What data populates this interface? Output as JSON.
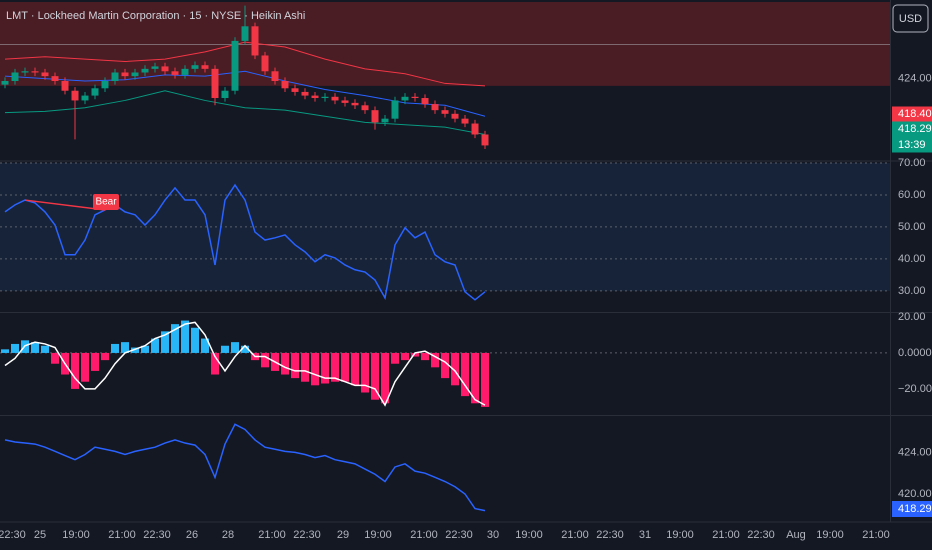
{
  "header": {
    "currency": "USD"
  },
  "x_axis": {
    "xlim": [
      -0.5,
      88.5
    ],
    "xticks": [
      {
        "value": 0.7,
        "label": "22:30"
      },
      {
        "value": 3.5,
        "label": "25"
      },
      {
        "value": 7.1,
        "label": "19:00"
      },
      {
        "value": 11.7,
        "label": "21:00"
      },
      {
        "value": 15.2,
        "label": "22:30"
      },
      {
        "value": 18.7,
        "label": "26"
      },
      {
        "value": 22.3,
        "label": "28"
      },
      {
        "value": 26.7,
        "label": "21:00"
      },
      {
        "value": 30.2,
        "label": "22:30"
      },
      {
        "value": 33.8,
        "label": "29"
      },
      {
        "value": 37.3,
        "label": "19:00"
      },
      {
        "value": 41.9,
        "label": "21:00"
      },
      {
        "value": 45.4,
        "label": "22:30"
      },
      {
        "value": 48.8,
        "label": "30"
      },
      {
        "value": 52.4,
        "label": "19:00"
      },
      {
        "value": 57,
        "label": "21:00"
      },
      {
        "value": 60.5,
        "label": "22:30"
      },
      {
        "value": 64,
        "label": "31"
      },
      {
        "value": 67.5,
        "label": "19:00"
      },
      {
        "value": 72.1,
        "label": "21:00"
      },
      {
        "value": 75.6,
        "label": "22:30"
      },
      {
        "value": 79.1,
        "label": "Aug"
      },
      {
        "value": 82.5,
        "label": "19:00"
      },
      {
        "value": 87.1,
        "label": "21:00"
      }
    ]
  },
  "chart_data": [
    {
      "type": "candlestick",
      "title": "LMT · Lockheed Martin Corporation · 15 · NYSE · Heikin Ashi",
      "up_color": "#089981",
      "down_color": "#f23645",
      "open": [
        423.5,
        423.8,
        424.5,
        424.6,
        424.5,
        424.2,
        423.8,
        423.0,
        422.2,
        422.6,
        423.2,
        423.8,
        424.5,
        424.2,
        424.5,
        424.8,
        425.0,
        424.6,
        424.3,
        424.8,
        425.1,
        424.8,
        422.4,
        423.0,
        427.1,
        428.3,
        425.9,
        424.6,
        423.8,
        423.2,
        422.9,
        422.6,
        422.4,
        422.5,
        422.2,
        422.0,
        421.8,
        421.4,
        420.4,
        420.7,
        422.2,
        422.5,
        422.4,
        421.9,
        421.4,
        421.1,
        420.7,
        420.3,
        419.4
      ],
      "high": [
        424.1,
        424.8,
        424.9,
        424.9,
        424.8,
        424.5,
        424.1,
        423.3,
        422.9,
        423.5,
        424.1,
        424.8,
        424.8,
        424.8,
        425.1,
        425.3,
        425.3,
        424.9,
        425.1,
        425.4,
        425.4,
        425.1,
        423.3,
        427.4,
        430.0,
        428.6,
        426.2,
        424.9,
        424.1,
        423.5,
        423.2,
        422.9,
        422.8,
        422.8,
        422.5,
        422.3,
        422.1,
        421.7,
        421.0,
        422.5,
        422.8,
        422.8,
        422.7,
        422.2,
        421.7,
        421.4,
        421.0,
        420.6,
        419.7
      ],
      "low": [
        423.2,
        423.5,
        424.2,
        424.2,
        423.9,
        423.5,
        422.7,
        419.0,
        421.9,
        422.3,
        422.9,
        423.5,
        423.9,
        423.9,
        424.2,
        424.5,
        424.3,
        424.0,
        424.0,
        424.5,
        424.5,
        421.8,
        422.1,
        422.7,
        426.8,
        425.6,
        424.3,
        423.5,
        422.9,
        422.6,
        422.3,
        422.1,
        422.1,
        421.9,
        421.7,
        421.5,
        421.1,
        419.8,
        420.1,
        420.4,
        421.9,
        422.1,
        421.6,
        421.1,
        420.8,
        420.4,
        420.0,
        419.1,
        418.2
      ],
      "close": [
        423.8,
        424.5,
        424.6,
        424.5,
        424.2,
        423.8,
        423.0,
        422.2,
        422.6,
        423.2,
        423.8,
        424.5,
        424.2,
        424.5,
        424.8,
        425.0,
        424.6,
        424.3,
        424.8,
        425.1,
        424.8,
        422.4,
        423.0,
        427.1,
        428.3,
        425.9,
        424.6,
        423.8,
        423.2,
        422.9,
        422.6,
        422.4,
        422.5,
        422.2,
        422.0,
        421.8,
        421.4,
        420.4,
        420.7,
        422.2,
        422.5,
        422.4,
        421.9,
        421.4,
        421.1,
        420.7,
        420.3,
        419.4,
        418.5
      ],
      "bands": [
        {
          "color": "#f23645",
          "x": [
            0,
            4,
            8,
            12,
            16,
            20,
            24,
            28,
            32,
            36,
            40,
            44,
            48
          ],
          "values": [
            425.6,
            425.8,
            425.6,
            425.4,
            425.6,
            426.2,
            427.0,
            426.6,
            425.6,
            424.8,
            424.4,
            423.6,
            423.4
          ]
        },
        {
          "color": "#2962ff",
          "x": [
            0,
            4,
            8,
            12,
            16,
            20,
            24,
            28,
            32,
            36,
            40,
            44,
            48
          ],
          "values": [
            424.2,
            424.0,
            423.8,
            423.9,
            424.3,
            424.2,
            424.6,
            423.8,
            423.1,
            422.6,
            422.0,
            421.8,
            420.9
          ]
        },
        {
          "color": "#089981",
          "x": [
            0,
            4,
            8,
            12,
            16,
            20,
            24,
            28,
            32,
            36,
            40,
            44,
            48
          ],
          "values": [
            421.2,
            421.3,
            421.6,
            422.2,
            423.0,
            422.2,
            421.6,
            421.4,
            420.9,
            420.4,
            420.2,
            420.0,
            419.4
          ]
        }
      ],
      "zone_bottom": 423.4,
      "zone_color": "#4a1c24",
      "level": 426.8,
      "ylim": [
        417.3,
        430.3
      ],
      "yticks": [
        {
          "value": 424,
          "label": "424.00"
        }
      ],
      "price_labels": [
        {
          "text": "418.40",
          "color": "#f23645"
        },
        {
          "text": "418.29",
          "color": "#089981"
        },
        {
          "text": "13:39",
          "color": "#089981"
        }
      ]
    },
    {
      "type": "line",
      "color": "#2962ff",
      "zone": [
        30,
        70
      ],
      "zone_color": "#172338",
      "grid": true,
      "values": [
        54.7,
        56.9,
        58.4,
        57.5,
        54.7,
        50.6,
        41.3,
        41.3,
        45.9,
        53.8,
        55.3,
        56.9,
        54.7,
        53.8,
        50.6,
        53.8,
        58.4,
        62.2,
        58.4,
        58.4,
        53.8,
        38.1,
        58.4,
        63.1,
        58.4,
        48.4,
        45.9,
        46.6,
        47.5,
        44.4,
        42.2,
        39.1,
        41.3,
        40.3,
        38.1,
        36.6,
        35.9,
        33.4,
        27.8,
        44.4,
        49.7,
        46.6,
        48.4,
        41.3,
        39.1,
        38.1,
        29.7,
        27.2,
        29.7
      ],
      "divergence": {
        "label": "Bear",
        "color": "#f23645",
        "x": [
          2,
          10
        ],
        "values": [
          58.4,
          55.3
        ]
      },
      "ylim": [
        23.4,
        70.3
      ],
      "yticks": [
        {
          "value": 30,
          "label": "30.00"
        },
        {
          "value": 40,
          "label": "40.00"
        },
        {
          "value": 50,
          "label": "50.00"
        },
        {
          "value": 60,
          "label": "60.00"
        },
        {
          "value": 70,
          "label": "70.00"
        }
      ]
    },
    {
      "type": "histogram",
      "pos_color": "#29b6f6",
      "neg_color": "#ff1a6c",
      "line_color": "#ffffff",
      "values": [
        2,
        5,
        7,
        6,
        4,
        -6,
        -12,
        -20,
        -16,
        -10,
        -4,
        5,
        6,
        3,
        4,
        8,
        12,
        16,
        18,
        14,
        8,
        -12,
        4,
        6,
        4,
        -4,
        -8,
        -10,
        -12,
        -14,
        -16,
        -18,
        -17,
        -16,
        -16,
        -18,
        -22,
        -26,
        -28,
        -6,
        -4,
        -2,
        -4,
        -8,
        -14,
        -18,
        -24,
        -28,
        -30
      ],
      "line": [
        -7,
        -3,
        4,
        6,
        5,
        3,
        -6,
        -14,
        -20,
        -20,
        -14,
        -6,
        0,
        2,
        4,
        8,
        10,
        13,
        16,
        17,
        10,
        -2,
        -10,
        -2,
        4,
        -2,
        -2,
        -5,
        -8,
        -10,
        -10,
        -12,
        -14,
        -14,
        -16,
        -18,
        -18,
        -20,
        -29,
        -16,
        -8,
        0,
        1,
        -2,
        -5,
        -10,
        -18,
        -26,
        -29
      ],
      "ylim": [
        -34.5,
        22.2
      ],
      "yticks": [
        {
          "value": -20,
          "label": "−20.00"
        },
        {
          "value": 0,
          "label": "0.0000"
        },
        {
          "value": 20,
          "label": "20.00"
        }
      ],
      "zero_line": true
    },
    {
      "type": "line",
      "color": "#2962ff",
      "values": [
        425.2,
        425.0,
        424.9,
        424.8,
        424.5,
        424.1,
        423.7,
        423.3,
        423.8,
        424.5,
        424.3,
        424.1,
        423.8,
        424.1,
        424.3,
        424.5,
        424.9,
        425.2,
        424.9,
        424.7,
        423.8,
        421.6,
        424.8,
        426.7,
        426.2,
        425.2,
        424.5,
        424.3,
        424.1,
        424.0,
        423.8,
        423.5,
        423.7,
        423.3,
        423.1,
        422.9,
        422.4,
        421.9,
        421.2,
        422.6,
        422.9,
        422.2,
        422.0,
        421.6,
        421.2,
        420.7,
        420.0,
        418.6,
        418.4
      ],
      "ylim": [
        417.5,
        427.5
      ],
      "yticks": [
        {
          "value": 420,
          "label": "420.00"
        },
        {
          "value": 424,
          "label": "424.00"
        }
      ],
      "last_label": "418.29"
    }
  ]
}
